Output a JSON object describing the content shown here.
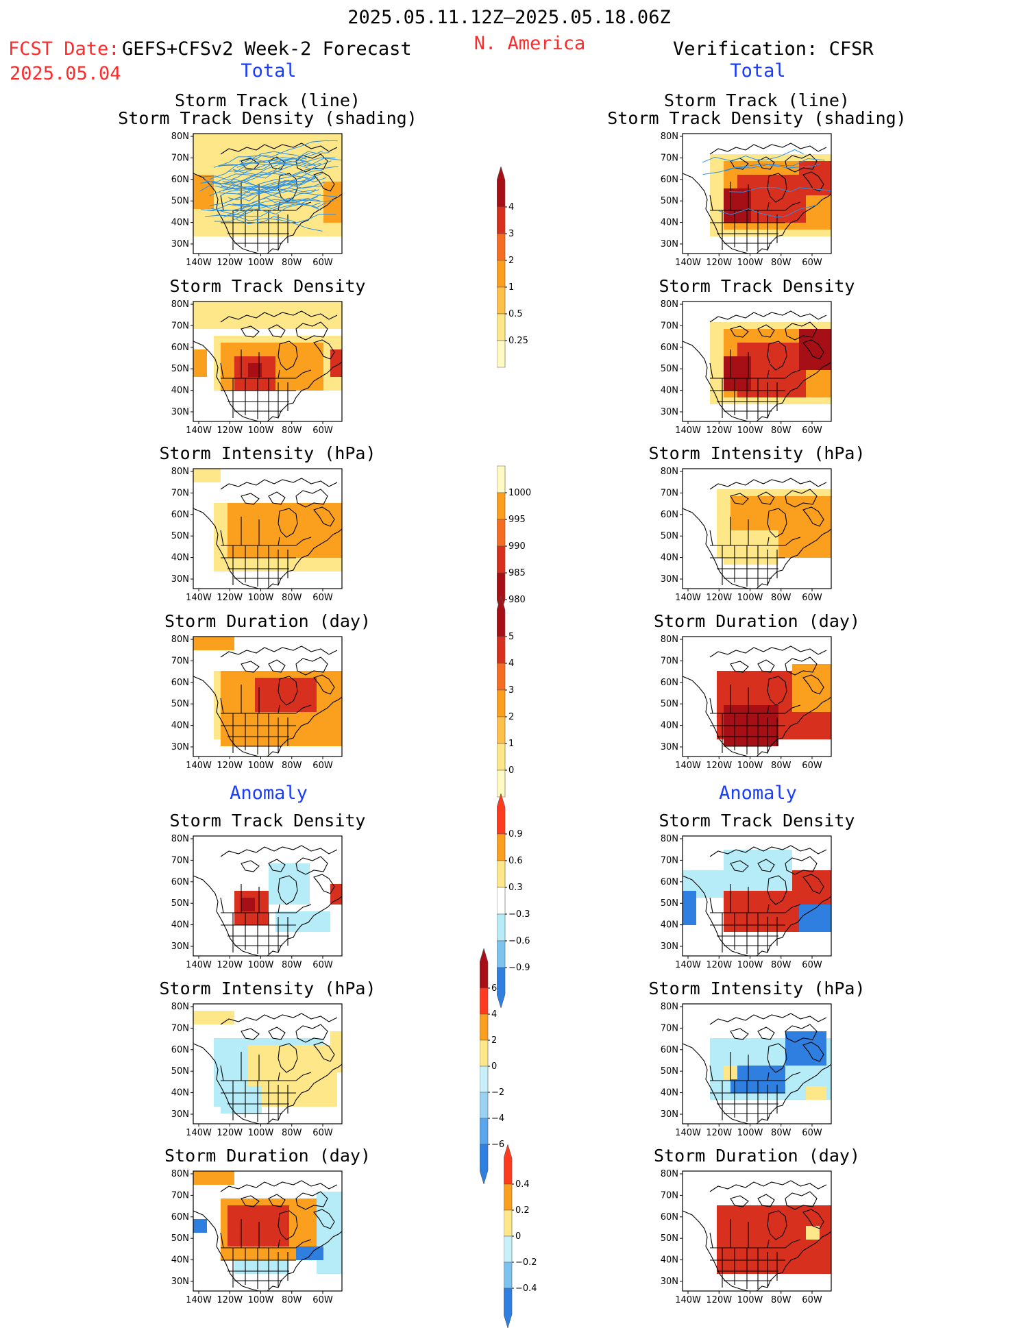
{
  "header": {
    "date_range": "2025.05.11.12Z–2025.05.18.06Z",
    "region": "N. America",
    "fcst_label": "FCST Date:",
    "forecast_name": "GEFS+CFSv2 Week-2 Forecast",
    "fcst_date": "2025.05.04",
    "verification": "Verification: CFSR",
    "total_left": "Total",
    "total_right": "Total",
    "anomaly_left": "Anomaly",
    "anomaly_right": "Anomaly"
  },
  "axes": {
    "lat_labels": [
      "80N",
      "70N",
      "60N",
      "50N",
      "40N",
      "30N"
    ],
    "lon_labels": [
      "140W",
      "120W",
      "100W",
      "80W",
      "60W"
    ]
  },
  "panels": [
    {
      "id": "fc-track",
      "title1": "Storm Track (line)",
      "title2": "Storm Track Density (shading)",
      "shade": "track"
    },
    {
      "id": "fc-density",
      "title1": "Storm Track Density",
      "shade": "density_fc"
    },
    {
      "id": "fc-intensity",
      "title1": "Storm Intensity (hPa)",
      "shade": "intensity_fc"
    },
    {
      "id": "fc-duration",
      "title1": "Storm Duration (day)",
      "shade": "duration_fc"
    },
    {
      "id": "fc-anom-density",
      "title1": "Storm Track Density",
      "shade": "anom_density_fc"
    },
    {
      "id": "fc-anom-intensity",
      "title1": "Storm Intensity (hPa)",
      "shade": "anom_intensity_fc"
    },
    {
      "id": "fc-anom-duration",
      "title1": "Storm Duration (day)",
      "shade": "anom_duration_fc"
    },
    {
      "id": "vf-track",
      "title1": "Storm Track (line)",
      "title2": "Storm Track Density (shading)",
      "shade": "track_vf"
    },
    {
      "id": "vf-density",
      "title1": "Storm Track Density",
      "shade": "density_vf"
    },
    {
      "id": "vf-intensity",
      "title1": "Storm Intensity (hPa)",
      "shade": "intensity_vf"
    },
    {
      "id": "vf-duration",
      "title1": "Storm Duration (day)",
      "shade": "duration_vf"
    },
    {
      "id": "vf-anom-density",
      "title1": "Storm Track Density",
      "shade": "anom_density_vf"
    },
    {
      "id": "vf-anom-intensity",
      "title1": "Storm Intensity (hPa)",
      "shade": "anom_intensity_vf"
    },
    {
      "id": "vf-anom-duration",
      "title1": "Storm Duration (day)",
      "shade": "anom_duration_vf"
    }
  ],
  "colorbars": [
    {
      "id": "cb-density",
      "labels": [
        "4",
        "3",
        "2",
        "1",
        "0.5",
        "0.25"
      ],
      "colors": [
        "#a50f15",
        "#d7301f",
        "#f46d22",
        "#fa9f1e",
        "#fdc04a",
        "#fee789",
        "#fff9c2"
      ],
      "arrow_top": true,
      "arrow_bottom": false
    },
    {
      "id": "cb-intensity",
      "labels": [
        "1000",
        "995",
        "990",
        "985",
        "980"
      ],
      "colors": [
        "#fff9c2",
        "#fa9f1e",
        "#f46d22",
        "#d7301f",
        "#a50f15"
      ],
      "arrow_top": false,
      "arrow_bottom": true
    },
    {
      "id": "cb-duration",
      "labels": [
        "5",
        "4",
        "3",
        "2",
        "1",
        "0"
      ],
      "colors": [
        "#a50f15",
        "#d7301f",
        "#f46d22",
        "#fa9f1e",
        "#fdc04a",
        "#fee789",
        "#fff9c2"
      ],
      "arrow_top": true,
      "arrow_bottom": false
    },
    {
      "id": "cb-anom-density",
      "labels": [
        "0.9",
        "0.6",
        "0.3",
        "−0.3",
        "−0.6",
        "−0.9"
      ],
      "colors": [
        "#ff3b1f",
        "#fa9f1e",
        "#fee789",
        "#ffffff",
        "#b5ecf7",
        "#7ec3f0",
        "#2f7fe0"
      ],
      "arrow_top": true,
      "arrow_bottom": true
    },
    {
      "id": "cb-anom-intensity",
      "labels": [
        "6",
        "4",
        "2",
        "0",
        "−2",
        "−4",
        "−6"
      ],
      "colors": [
        "#a50f15",
        "#ff3b1f",
        "#fa9f1e",
        "#fee789",
        "#c8f0fa",
        "#9ad2f3",
        "#5aa6ec",
        "#2f7fe0"
      ],
      "arrow_top": true,
      "arrow_bottom": true
    },
    {
      "id": "cb-anom-duration",
      "labels": [
        "0.4",
        "0.2",
        "0",
        "−0.2",
        "−0.4"
      ],
      "colors": [
        "#ff3b1f",
        "#fa9f1e",
        "#fee789",
        "#c8f0fa",
        "#7ec3f0",
        "#2f7fe0"
      ],
      "arrow_top": true,
      "arrow_bottom": true
    }
  ],
  "colors": {
    "warm_light": "#fee789",
    "warm_mid": "#fa9f1e",
    "warm_dark": "#d7301f",
    "warm_darkest": "#a50f15",
    "cool_light": "#b5ecf7",
    "cool_mid": "#7ec3f0",
    "cool_dark": "#2f7fe0",
    "track_line": "#2b8fe6"
  }
}
